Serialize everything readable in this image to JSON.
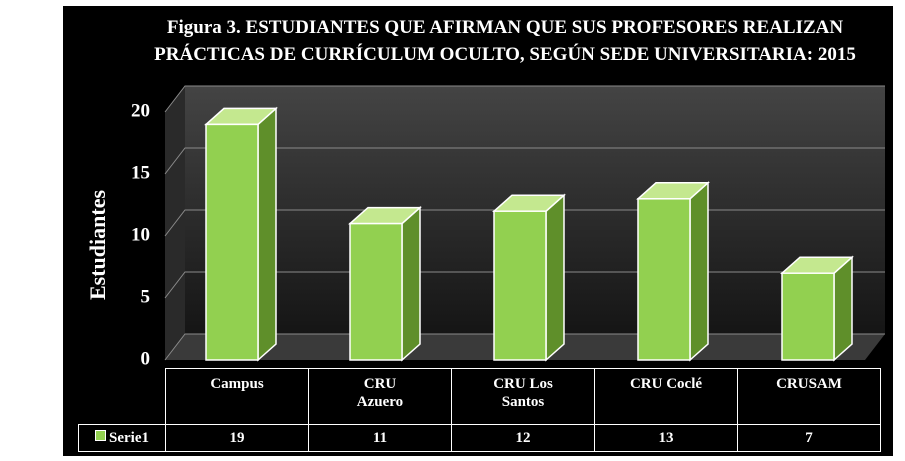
{
  "chart_data": {
    "type": "bar",
    "title": "Figura 3. ESTUDIANTES QUE AFIRMAN QUE SUS PROFESORES REALIZAN PRÁCTICAS DE CURRÍCULUM OCULTO, SEGÚN SEDE UNIVERSITARIA: 2015",
    "y_label": "Estudiantes",
    "categories": [
      "Campus",
      "CRU\nAzuero",
      "CRU Los\nSantos",
      "CRU Coclé",
      "CRUSAM"
    ],
    "series": [
      {
        "name": "Serie1",
        "color": "#92d050",
        "values": [
          19,
          11,
          12,
          13,
          7
        ]
      }
    ],
    "ylim": [
      0,
      20
    ],
    "yticks": [
      0,
      5,
      10,
      15,
      20
    ],
    "grid": true
  }
}
